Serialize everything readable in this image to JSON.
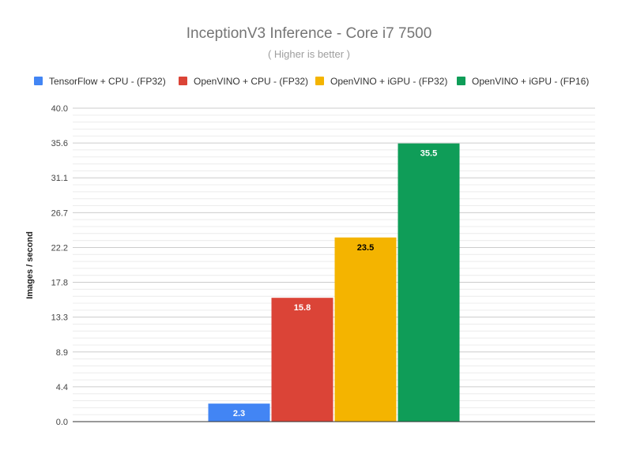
{
  "chart_data": {
    "type": "bar",
    "title": "InceptionV3 Inference - Core i7 7500",
    "subtitle": "( Higher is better )",
    "xlabel": "",
    "ylabel": "Images / second",
    "ylim": [
      0,
      40
    ],
    "y_ticks": [
      "0.0",
      "4.4",
      "8.9",
      "13.3",
      "17.8",
      "22.2",
      "26.7",
      "31.1",
      "35.6",
      "40.0"
    ],
    "grid": true,
    "legend_position": "top",
    "series": [
      {
        "name": "TensorFlow + CPU - (FP32)",
        "value": 2.3,
        "label": "2.3",
        "color": "#4285f4",
        "label_color": "#ffffff"
      },
      {
        "name": "OpenVINO + CPU - (FP32)",
        "value": 15.8,
        "label": "15.8",
        "color": "#db4437",
        "label_color": "#ffffff"
      },
      {
        "name": "OpenVINO + iGPU - (FP32)",
        "value": 23.5,
        "label": "23.5",
        "color": "#f4b400",
        "label_color": "#000000"
      },
      {
        "name": "OpenVINO + iGPU - (FP16)",
        "value": 35.5,
        "label": "35.5",
        "color": "#0f9d58",
        "label_color": "#ffffff"
      }
    ]
  }
}
